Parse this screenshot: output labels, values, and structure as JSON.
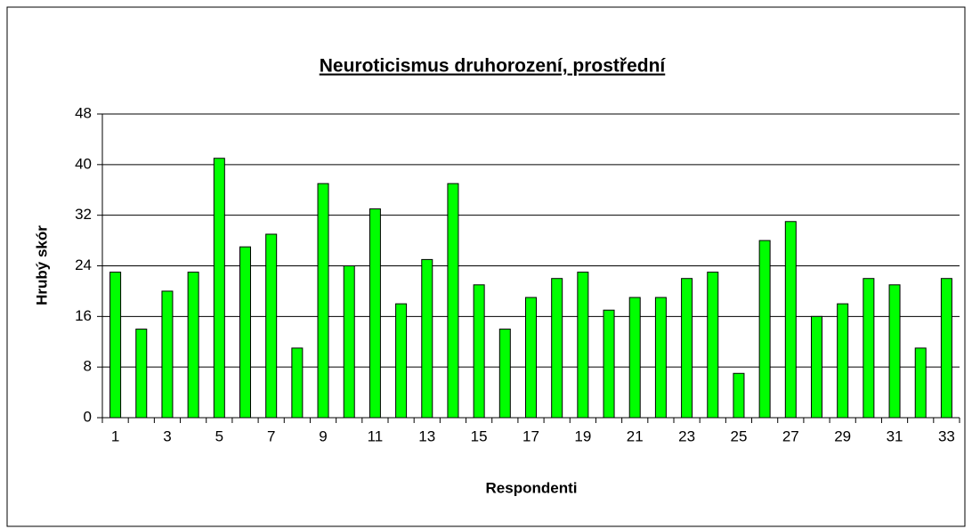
{
  "chart_data": {
    "type": "bar",
    "title": "Neuroticismus druhorození, prostřední",
    "x_label": "Respondenti",
    "y_label": "Hrubý skór",
    "categories": [
      "1",
      null,
      "3",
      null,
      "5",
      null,
      "7",
      null,
      "9",
      null,
      "11",
      null,
      "13",
      null,
      "15",
      null,
      "17",
      null,
      "19",
      null,
      "21",
      null,
      "23",
      null,
      "25",
      null,
      "27",
      null,
      "29",
      null,
      "31",
      null,
      "33"
    ],
    "values": [
      23,
      14,
      20,
      23,
      41,
      27,
      29,
      11,
      37,
      24,
      33,
      18,
      25,
      37,
      21,
      14,
      19,
      22,
      23,
      17,
      19,
      19,
      22,
      23,
      7,
      28,
      31,
      16,
      18,
      22,
      21,
      11,
      22
    ],
    "color": "#00ff00",
    "ylim": [
      0,
      48
    ],
    "yticks": [
      0,
      8,
      16,
      24,
      32,
      40,
      48
    ],
    "grid": true
  }
}
